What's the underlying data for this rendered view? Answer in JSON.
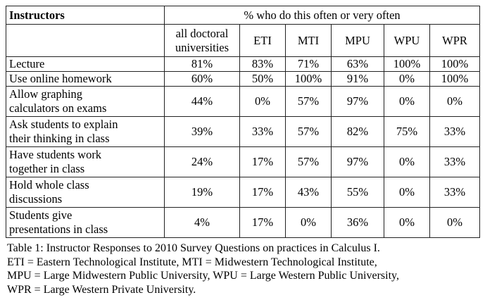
{
  "table": {
    "corner": "Instructors",
    "group": "% who do this often or very often",
    "columns": [
      [
        "all doctoral",
        "universities"
      ],
      [
        "ETI"
      ],
      [
        "MTI"
      ],
      [
        "MPU"
      ],
      [
        "WPU"
      ],
      [
        "WPR"
      ]
    ],
    "rows": [
      {
        "label": [
          "Lecture"
        ],
        "cells": [
          "81%",
          "83%",
          "71%",
          "63%",
          "100%",
          "100%"
        ]
      },
      {
        "label": [
          "Use online homework"
        ],
        "cells": [
          "60%",
          "50%",
          "100%",
          "91%",
          "0%",
          "100%"
        ]
      },
      {
        "label": [
          "Allow graphing",
          "calculators on exams"
        ],
        "cells": [
          "44%",
          "0%",
          "57%",
          "97%",
          "0%",
          "0%"
        ]
      },
      {
        "label": [
          "Ask students to explain",
          "their thinking in class"
        ],
        "cells": [
          "39%",
          "33%",
          "57%",
          "82%",
          "75%",
          "33%"
        ]
      },
      {
        "label": [
          "Have students work",
          "together in class"
        ],
        "cells": [
          "24%",
          "17%",
          "57%",
          "97%",
          "0%",
          "33%"
        ]
      },
      {
        "label": [
          "Hold whole class",
          "discussions"
        ],
        "cells": [
          "19%",
          "17%",
          "43%",
          "55%",
          "0%",
          "33%"
        ]
      },
      {
        "label": [
          "Students give",
          "presentations in class"
        ],
        "cells": [
          "4%",
          "17%",
          "0%",
          "36%",
          "0%",
          "0%"
        ]
      }
    ]
  },
  "caption": [
    "Table 1: Instructor Responses to 2010 Survey Questions on practices in Calculus I.",
    "ETI = Eastern Technological Institute, MTI = Midwestern Technological Institute,",
    "MPU = Large Midwestern Public University, WPU = Large Western Public University,",
    "WPR = Large Western Private University."
  ]
}
